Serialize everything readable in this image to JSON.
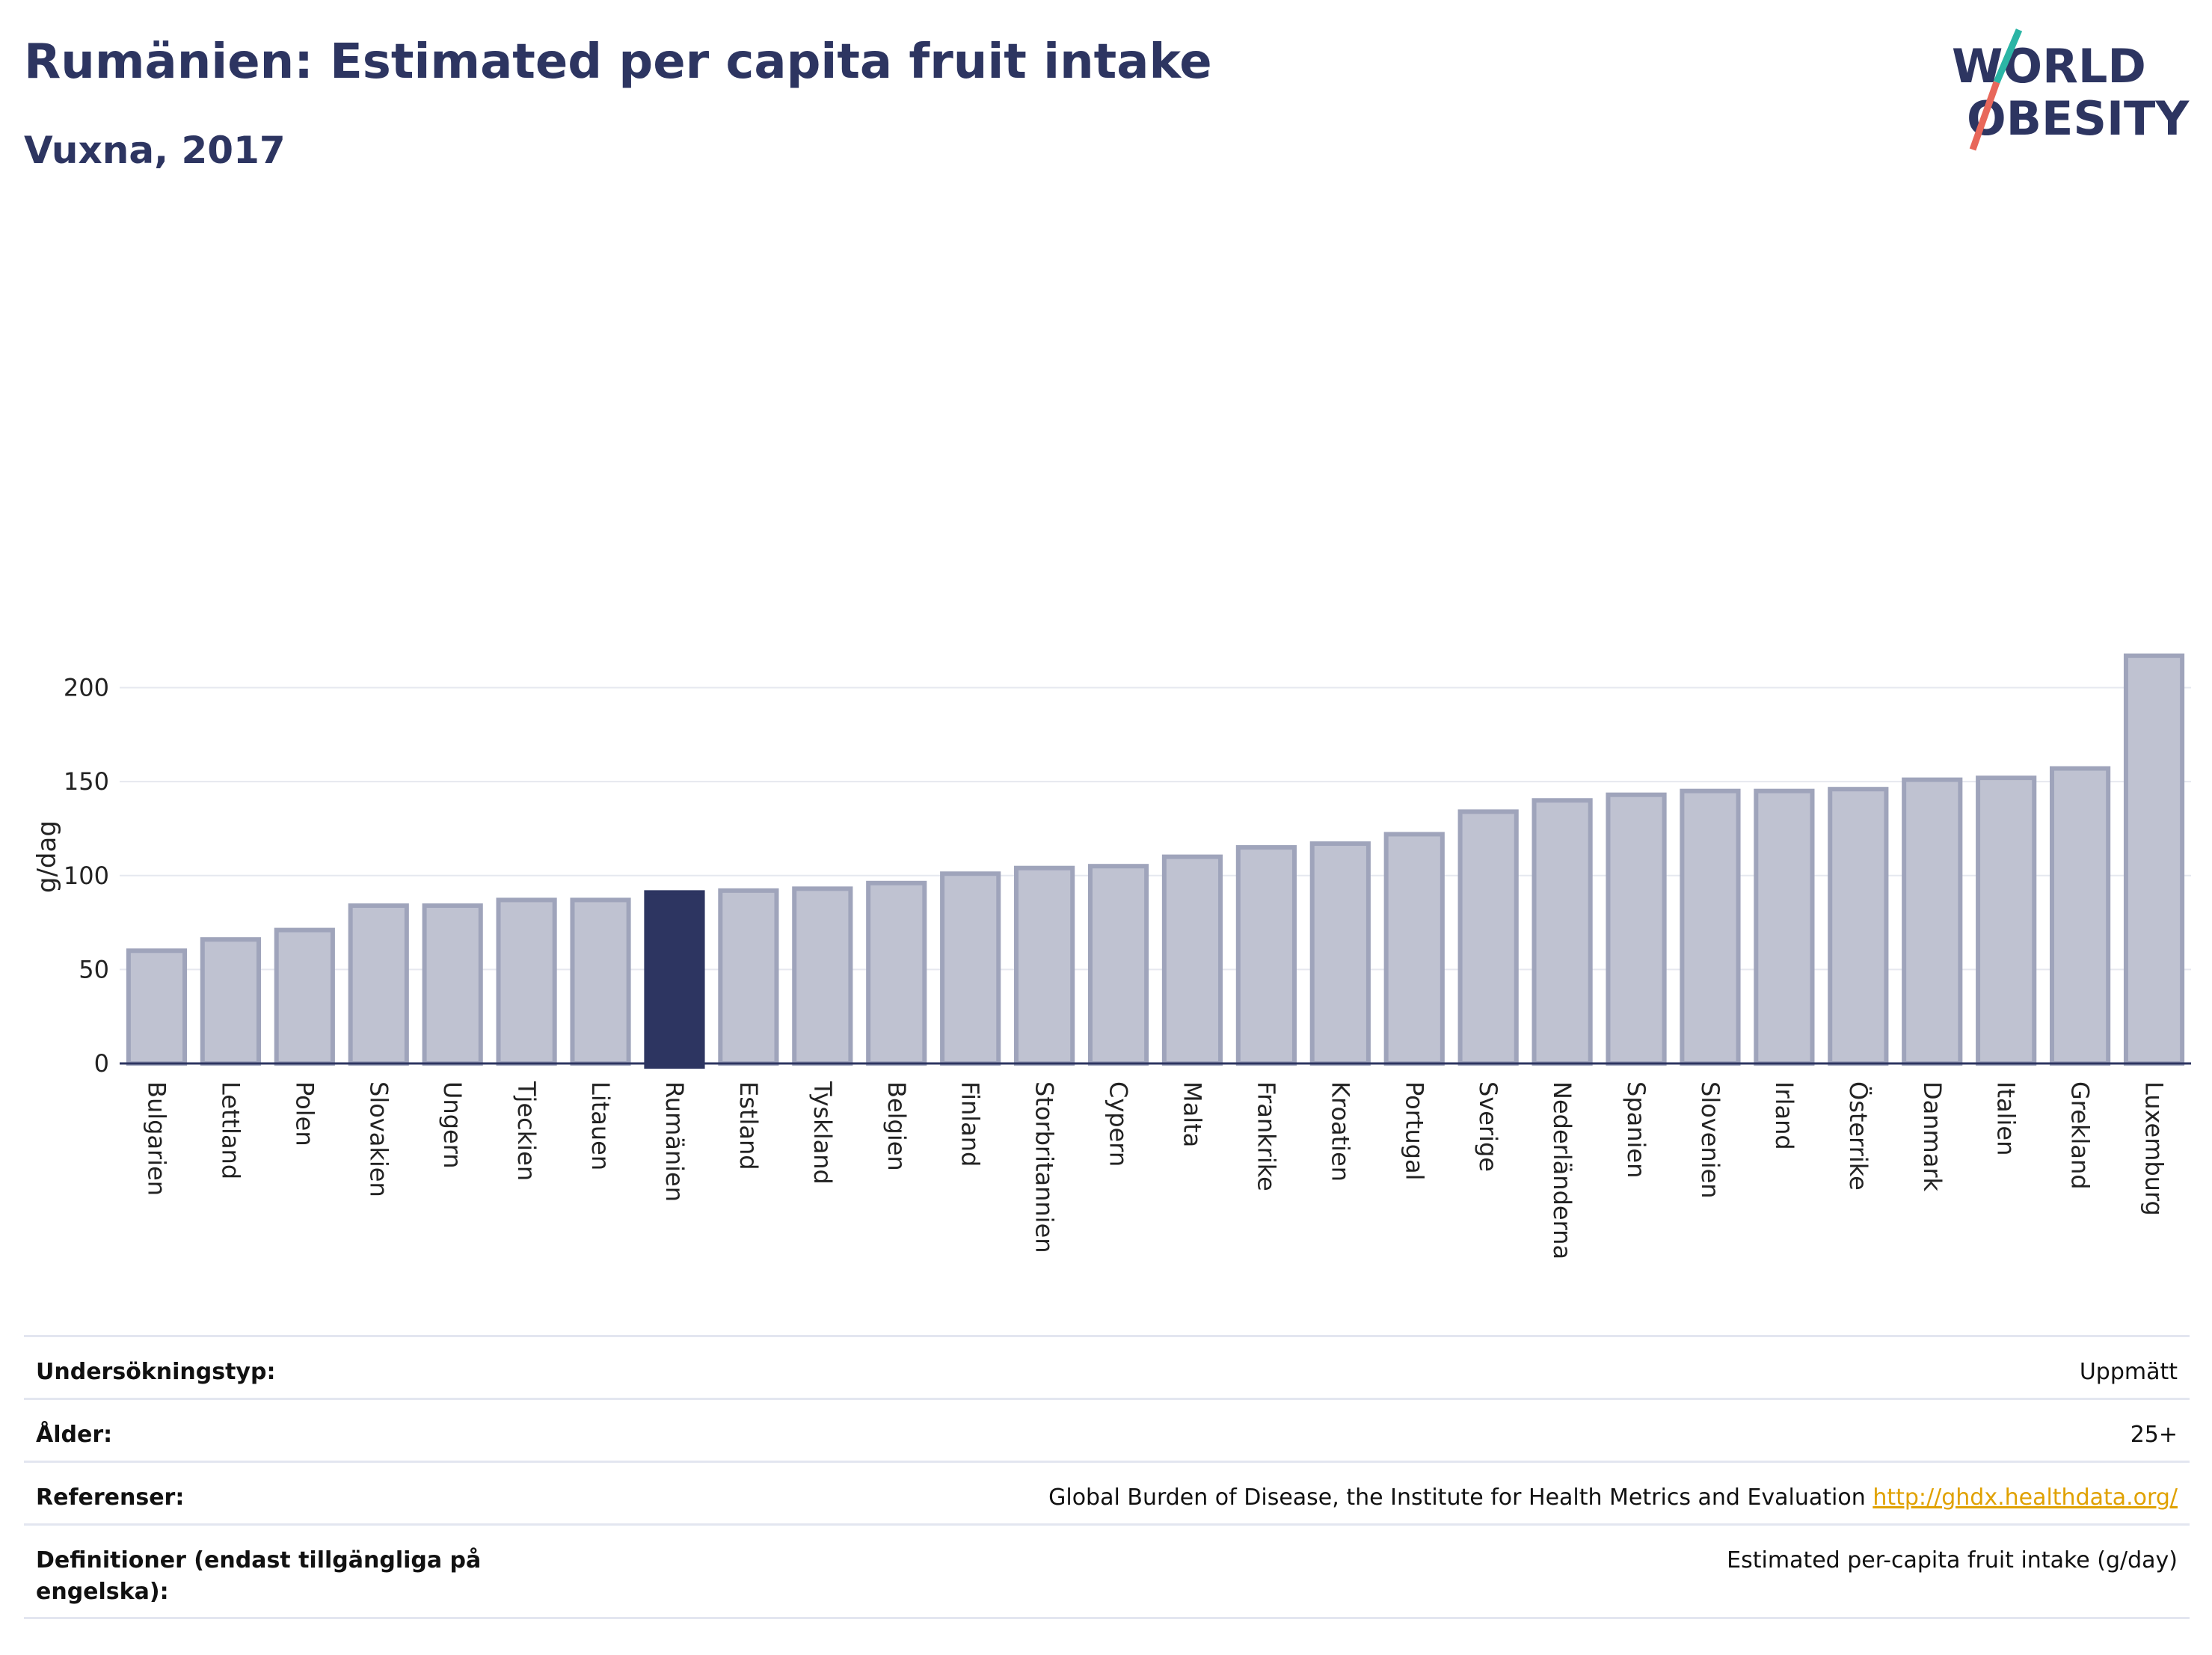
{
  "header": {
    "title": "Rumänien: Estimated per capita fruit intake",
    "subtitle": "Vuxna, 2017",
    "logo_line1": "WORLD",
    "logo_line2": "OBESITY"
  },
  "colors": {
    "highlight": "#2d3561",
    "bar_fill": "#bfc2d1",
    "bar_stroke": "#9fa4bb",
    "grid": "#e6e8ef",
    "link": "#e0a100",
    "logo_teal": "#2bb5a5",
    "logo_coral": "#e8675a"
  },
  "chart_data": {
    "type": "bar",
    "title": "Rumänien: Estimated per capita fruit intake",
    "subtitle": "Vuxna, 2017",
    "xlabel": "",
    "ylabel": "g/dag",
    "ylim": [
      0,
      220
    ],
    "yticks": [
      0,
      50,
      100,
      150,
      200
    ],
    "grid": true,
    "highlight": "Rumänien",
    "categories": [
      "Bulgarien",
      "Lettland",
      "Polen",
      "Slovakien",
      "Ungern",
      "Tjeckien",
      "Litauen",
      "Rumänien",
      "Estland",
      "Tyskland",
      "Belgien",
      "Finland",
      "Storbritannien",
      "Cypern",
      "Malta",
      "Frankrike",
      "Kroatien",
      "Portugal",
      "Sverige",
      "Nederländerna",
      "Spanien",
      "Slovenien",
      "Irland",
      "Österrike",
      "Danmark",
      "Italien",
      "Grekland",
      "Luxemburg"
    ],
    "values": [
      60,
      66,
      71,
      84,
      84,
      87,
      87,
      91,
      92,
      93,
      96,
      101,
      104,
      105,
      110,
      115,
      117,
      122,
      134,
      140,
      143,
      145,
      145,
      146,
      151,
      152,
      157,
      217
    ]
  },
  "info": {
    "rows": [
      {
        "label": "Undersökningstyp:",
        "value": "Uppmätt",
        "link": ""
      },
      {
        "label": "Ålder:",
        "value": "25+",
        "link": ""
      },
      {
        "label": "Referenser:",
        "value": "Global Burden of Disease, the Institute for Health Metrics and Evaluation",
        "link": "http://ghdx.healthdata.org/"
      },
      {
        "label": "Definitioner (endast tillgängliga på engelska):",
        "value": "Estimated per-capita fruit intake (g/day)",
        "link": ""
      }
    ]
  }
}
